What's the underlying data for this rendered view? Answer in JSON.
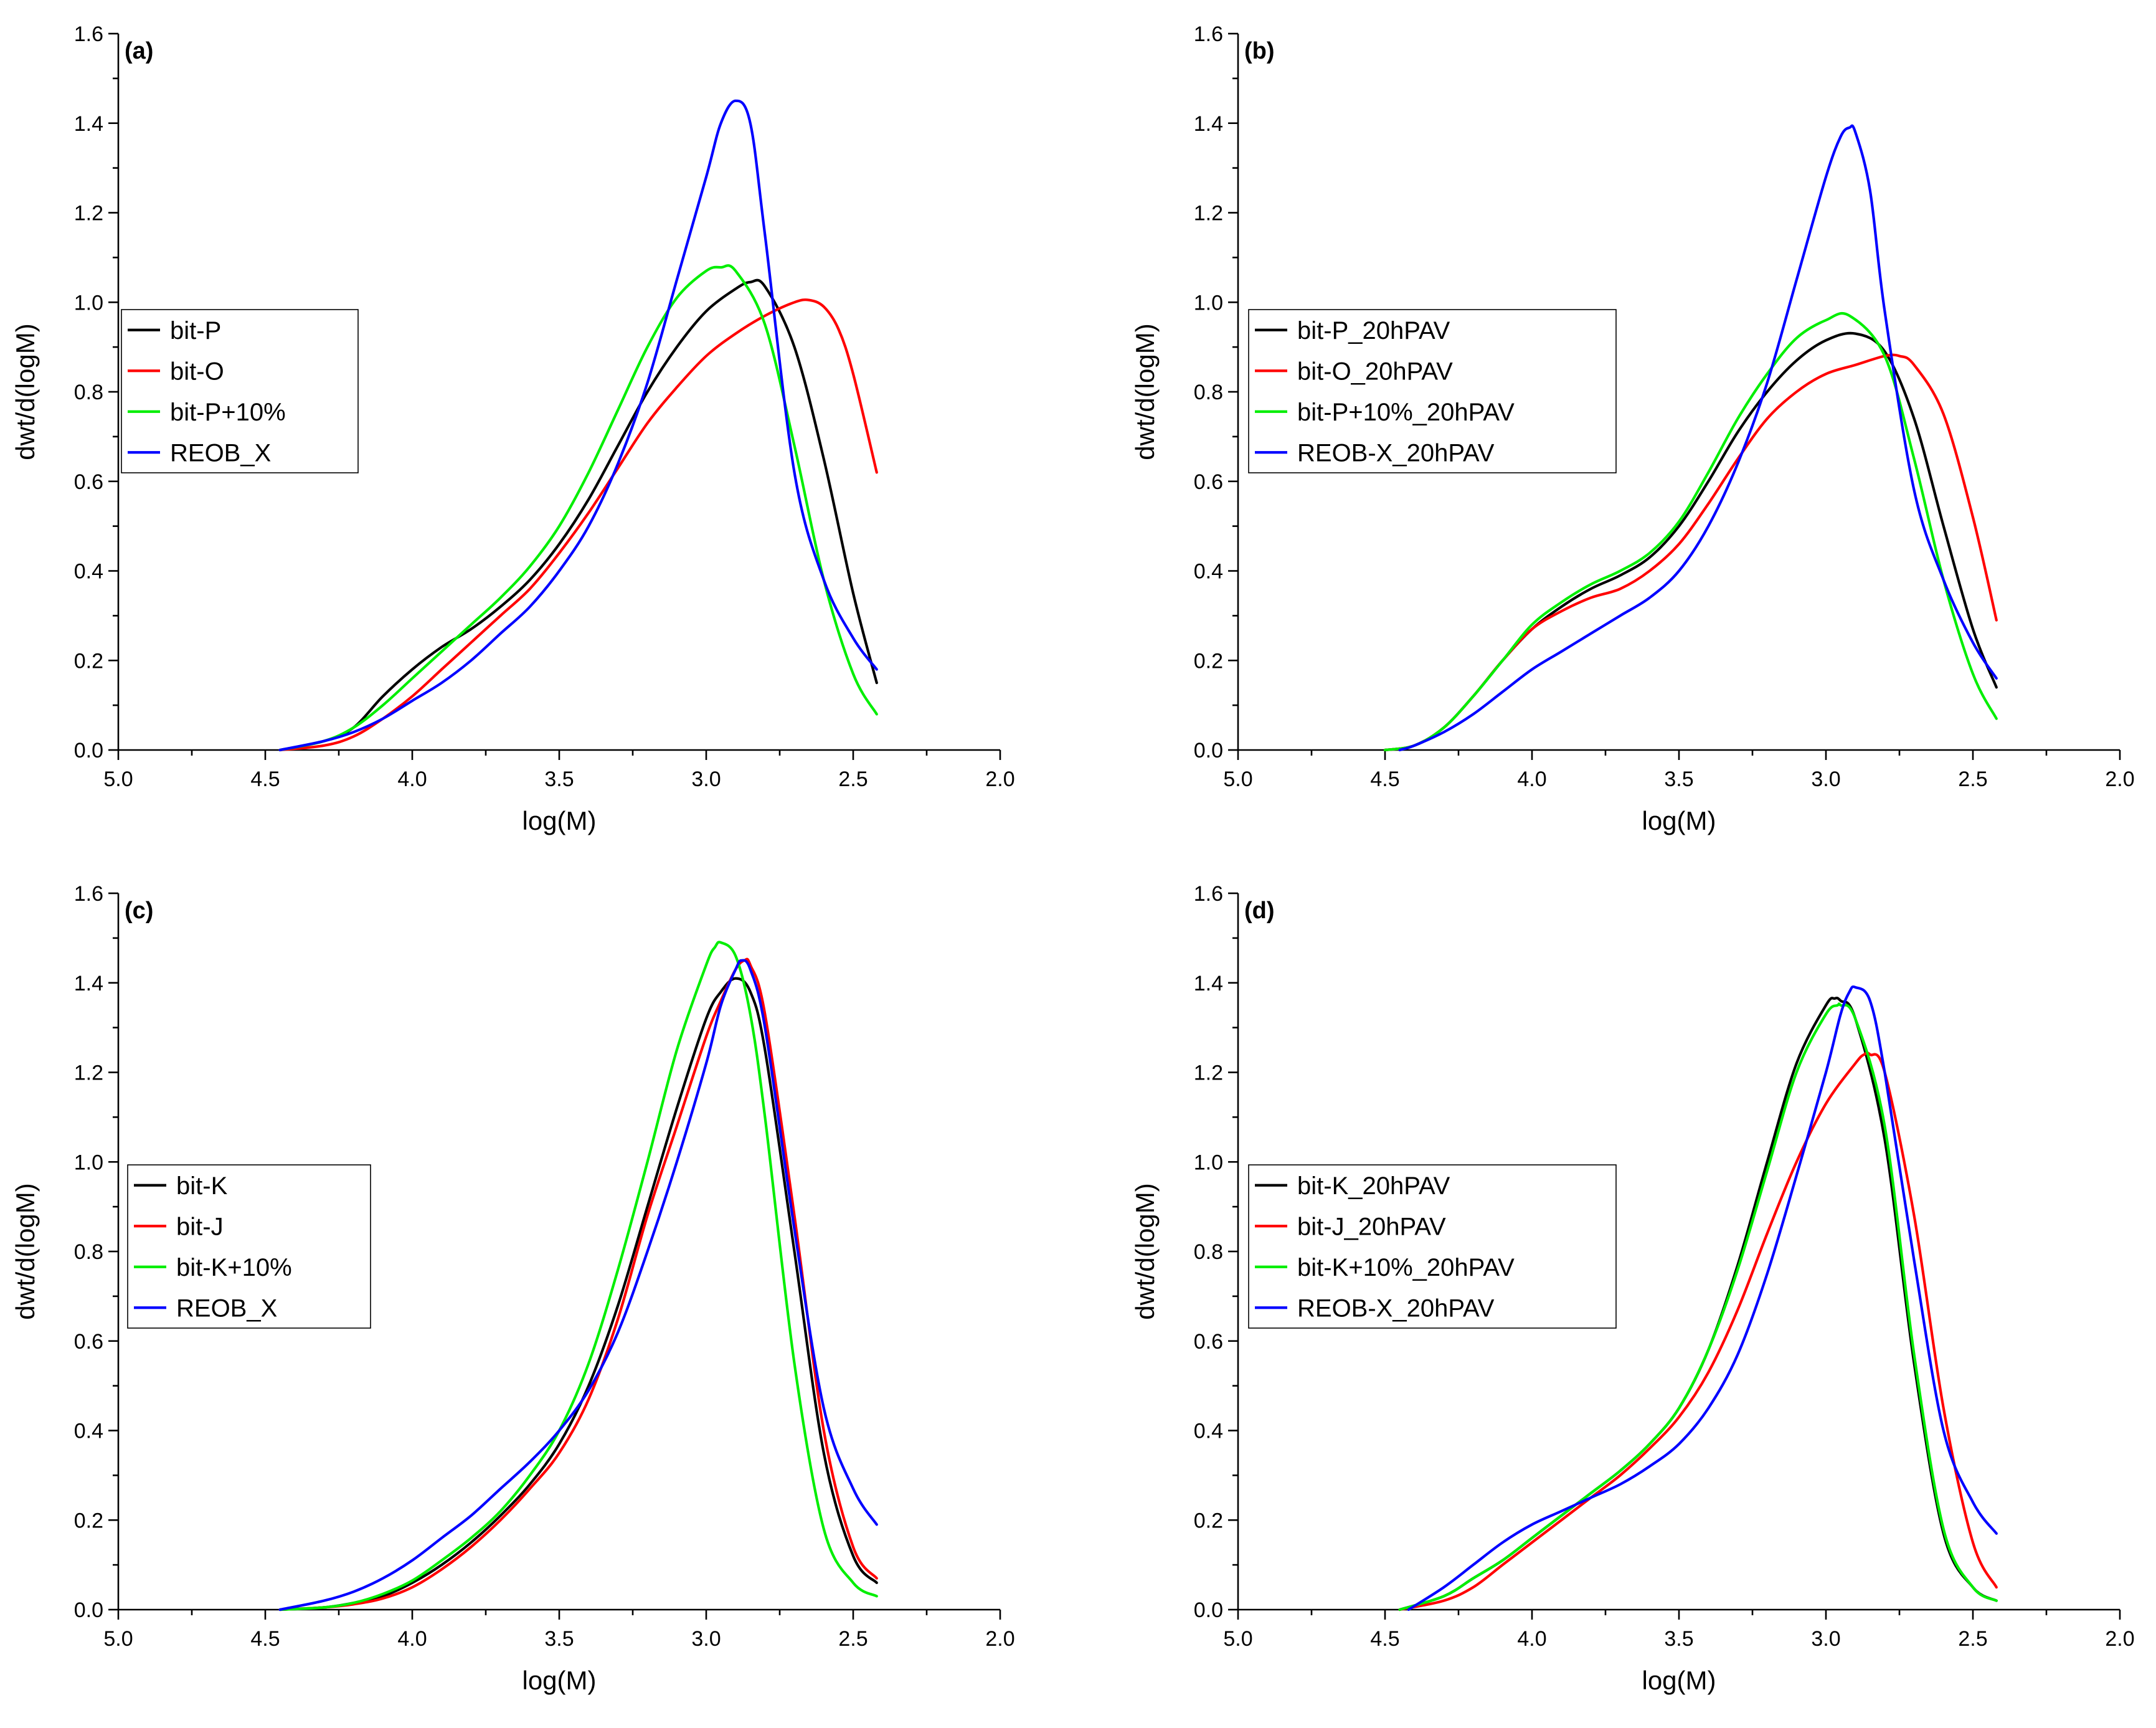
{
  "chart_data": [
    {
      "type": "line",
      "panel_label": "(a)",
      "xlabel": "log(M)",
      "ylabel": "dwt/d(logM)",
      "xlim": [
        5.0,
        2.0
      ],
      "ylim": [
        0.0,
        1.6
      ],
      "xticks": [
        "5.0",
        "4.5",
        "4.0",
        "3.5",
        "3.0",
        "2.5",
        "2.0"
      ],
      "yticks": [
        "0.0",
        "0.2",
        "0.4",
        "0.6",
        "0.8",
        "1.0",
        "1.2",
        "1.4",
        "1.6"
      ],
      "legend_position": "middle-left",
      "series": [
        {
          "name": "bit-P",
          "color": "#000000",
          "x": [
            4.45,
            4.3,
            4.2,
            4.1,
            4.0,
            3.9,
            3.8,
            3.7,
            3.6,
            3.5,
            3.4,
            3.3,
            3.2,
            3.1,
            3.0,
            2.9,
            2.85,
            2.8,
            2.7,
            2.6,
            2.5,
            2.42
          ],
          "y": [
            0.0,
            0.02,
            0.05,
            0.12,
            0.18,
            0.23,
            0.27,
            0.32,
            0.38,
            0.46,
            0.56,
            0.68,
            0.8,
            0.9,
            0.98,
            1.03,
            1.045,
            1.035,
            0.9,
            0.65,
            0.35,
            0.15
          ]
        },
        {
          "name": "bit-O",
          "color": "#ff0000",
          "x": [
            4.45,
            4.3,
            4.2,
            4.1,
            4.0,
            3.9,
            3.8,
            3.7,
            3.6,
            3.5,
            3.4,
            3.3,
            3.2,
            3.1,
            3.0,
            2.9,
            2.8,
            2.7,
            2.65,
            2.6,
            2.55,
            2.5,
            2.42
          ],
          "y": [
            0.0,
            0.01,
            0.03,
            0.07,
            0.12,
            0.18,
            0.24,
            0.3,
            0.36,
            0.44,
            0.53,
            0.63,
            0.73,
            0.81,
            0.88,
            0.93,
            0.97,
            1.0,
            1.005,
            0.99,
            0.94,
            0.84,
            0.62
          ]
        },
        {
          "name": "bit-P+10%",
          "color": "#00ee00",
          "x": [
            4.45,
            4.3,
            4.2,
            4.1,
            4.0,
            3.9,
            3.8,
            3.7,
            3.6,
            3.5,
            3.4,
            3.3,
            3.2,
            3.1,
            3.0,
            2.95,
            2.9,
            2.8,
            2.7,
            2.6,
            2.5,
            2.42
          ],
          "y": [
            0.0,
            0.02,
            0.05,
            0.1,
            0.16,
            0.22,
            0.28,
            0.34,
            0.41,
            0.5,
            0.62,
            0.76,
            0.9,
            1.01,
            1.07,
            1.078,
            1.07,
            0.95,
            0.68,
            0.38,
            0.17,
            0.08
          ]
        },
        {
          "name": "REOB_X",
          "color": "#0000ff",
          "x": [
            4.45,
            4.3,
            4.2,
            4.1,
            4.0,
            3.9,
            3.8,
            3.7,
            3.6,
            3.5,
            3.4,
            3.3,
            3.2,
            3.1,
            3.0,
            2.95,
            2.9,
            2.85,
            2.8,
            2.7,
            2.6,
            2.5,
            2.42
          ],
          "y": [
            0.0,
            0.02,
            0.04,
            0.07,
            0.11,
            0.15,
            0.2,
            0.26,
            0.32,
            0.4,
            0.5,
            0.64,
            0.82,
            1.05,
            1.28,
            1.4,
            1.45,
            1.4,
            1.15,
            0.62,
            0.38,
            0.25,
            0.18
          ]
        }
      ]
    },
    {
      "type": "line",
      "panel_label": "(b)",
      "xlabel": "log(M)",
      "ylabel": "dwt/d(logM)",
      "xlim": [
        5.0,
        2.0
      ],
      "ylim": [
        0.0,
        1.6
      ],
      "xticks": [
        "5.0",
        "4.5",
        "4.0",
        "3.5",
        "3.0",
        "2.5",
        "2.0"
      ],
      "yticks": [
        "0.0",
        "0.2",
        "0.4",
        "0.6",
        "0.8",
        "1.0",
        "1.2",
        "1.4",
        "1.6"
      ],
      "legend_position": "upper-left",
      "series": [
        {
          "name": "bit-P_20hPAV",
          "color": "#000000",
          "x": [
            4.5,
            4.4,
            4.3,
            4.2,
            4.1,
            4.0,
            3.9,
            3.8,
            3.7,
            3.6,
            3.5,
            3.4,
            3.3,
            3.2,
            3.1,
            3.0,
            2.9,
            2.8,
            2.7,
            2.6,
            2.5,
            2.42
          ],
          "y": [
            0.0,
            0.01,
            0.05,
            0.12,
            0.2,
            0.27,
            0.32,
            0.36,
            0.39,
            0.43,
            0.5,
            0.6,
            0.71,
            0.8,
            0.87,
            0.915,
            0.93,
            0.89,
            0.74,
            0.5,
            0.27,
            0.14
          ]
        },
        {
          "name": "bit-O_20hPAV",
          "color": "#ff0000",
          "x": [
            4.5,
            4.4,
            4.3,
            4.2,
            4.1,
            4.0,
            3.9,
            3.8,
            3.7,
            3.6,
            3.5,
            3.4,
            3.3,
            3.2,
            3.1,
            3.0,
            2.9,
            2.8,
            2.75,
            2.7,
            2.6,
            2.5,
            2.42
          ],
          "y": [
            0.0,
            0.01,
            0.05,
            0.12,
            0.2,
            0.27,
            0.31,
            0.34,
            0.36,
            0.4,
            0.46,
            0.55,
            0.65,
            0.74,
            0.8,
            0.84,
            0.86,
            0.88,
            0.88,
            0.86,
            0.75,
            0.52,
            0.29
          ]
        },
        {
          "name": "bit-P+10%_20hPAV",
          "color": "#00ee00",
          "x": [
            4.5,
            4.4,
            4.3,
            4.2,
            4.1,
            4.0,
            3.9,
            3.8,
            3.7,
            3.6,
            3.5,
            3.4,
            3.3,
            3.2,
            3.1,
            3.0,
            2.92,
            2.8,
            2.7,
            2.6,
            2.5,
            2.42
          ],
          "y": [
            0.0,
            0.01,
            0.05,
            0.12,
            0.2,
            0.28,
            0.33,
            0.37,
            0.4,
            0.44,
            0.51,
            0.62,
            0.74,
            0.84,
            0.92,
            0.96,
            0.97,
            0.88,
            0.65,
            0.38,
            0.17,
            0.07
          ]
        },
        {
          "name": "REOB-X_20hPAV",
          "color": "#0000ff",
          "x": [
            4.45,
            4.4,
            4.3,
            4.2,
            4.1,
            4.0,
            3.9,
            3.8,
            3.7,
            3.6,
            3.5,
            3.4,
            3.3,
            3.2,
            3.1,
            3.0,
            2.95,
            2.92,
            2.9,
            2.85,
            2.8,
            2.7,
            2.6,
            2.5,
            2.42
          ],
          "y": [
            0.0,
            0.01,
            0.04,
            0.08,
            0.13,
            0.18,
            0.22,
            0.26,
            0.3,
            0.34,
            0.4,
            0.5,
            0.64,
            0.82,
            1.05,
            1.28,
            1.37,
            1.39,
            1.38,
            1.25,
            0.98,
            0.58,
            0.38,
            0.24,
            0.16
          ]
        }
      ]
    },
    {
      "type": "line",
      "panel_label": "(c)",
      "xlabel": "log(M)",
      "ylabel": "dwt/d(logM)",
      "xlim": [
        5.0,
        2.0
      ],
      "ylim": [
        0.0,
        1.6
      ],
      "xticks": [
        "5.0",
        "4.5",
        "4.0",
        "3.5",
        "3.0",
        "2.5",
        "2.0"
      ],
      "yticks": [
        "0.0",
        "0.2",
        "0.4",
        "0.6",
        "0.8",
        "1.0",
        "1.2",
        "1.4",
        "1.6"
      ],
      "legend_position": "middle-left",
      "series": [
        {
          "name": "bit-K",
          "color": "#000000",
          "x": [
            4.45,
            4.3,
            4.2,
            4.1,
            4.0,
            3.9,
            3.8,
            3.7,
            3.6,
            3.5,
            3.4,
            3.3,
            3.2,
            3.1,
            3.0,
            2.95,
            2.9,
            2.85,
            2.8,
            2.7,
            2.6,
            2.5,
            2.42
          ],
          "y": [
            0.0,
            0.005,
            0.015,
            0.03,
            0.06,
            0.1,
            0.15,
            0.21,
            0.28,
            0.37,
            0.5,
            0.68,
            0.9,
            1.12,
            1.32,
            1.38,
            1.41,
            1.38,
            1.25,
            0.8,
            0.35,
            0.12,
            0.06
          ]
        },
        {
          "name": "bit-J",
          "color": "#ff0000",
          "x": [
            4.45,
            4.3,
            4.2,
            4.1,
            4.0,
            3.9,
            3.8,
            3.7,
            3.6,
            3.5,
            3.4,
            3.3,
            3.2,
            3.1,
            3.0,
            2.95,
            2.9,
            2.87,
            2.85,
            2.8,
            2.7,
            2.6,
            2.5,
            2.42
          ],
          "y": [
            0.0,
            0.005,
            0.012,
            0.025,
            0.05,
            0.09,
            0.14,
            0.2,
            0.27,
            0.35,
            0.47,
            0.65,
            0.88,
            1.08,
            1.28,
            1.36,
            1.43,
            1.45,
            1.44,
            1.33,
            0.88,
            0.4,
            0.14,
            0.07
          ]
        },
        {
          "name": "bit-K+10%",
          "color": "#00ee00",
          "x": [
            4.45,
            4.3,
            4.2,
            4.1,
            4.0,
            3.9,
            3.8,
            3.7,
            3.6,
            3.5,
            3.4,
            3.3,
            3.2,
            3.1,
            3.0,
            2.97,
            2.95,
            2.9,
            2.85,
            2.8,
            2.7,
            2.6,
            2.5,
            2.42
          ],
          "y": [
            0.0,
            0.005,
            0.015,
            0.035,
            0.065,
            0.11,
            0.16,
            0.22,
            0.3,
            0.4,
            0.55,
            0.76,
            1.0,
            1.25,
            1.44,
            1.48,
            1.49,
            1.46,
            1.33,
            1.1,
            0.55,
            0.18,
            0.06,
            0.03
          ]
        },
        {
          "name": "REOB_X",
          "color": "#0000ff",
          "x": [
            4.45,
            4.3,
            4.2,
            4.1,
            4.0,
            3.9,
            3.8,
            3.7,
            3.6,
            3.5,
            3.4,
            3.3,
            3.2,
            3.1,
            3.0,
            2.95,
            2.9,
            2.88,
            2.85,
            2.8,
            2.7,
            2.6,
            2.5,
            2.42
          ],
          "y": [
            0.0,
            0.02,
            0.04,
            0.07,
            0.11,
            0.16,
            0.21,
            0.27,
            0.33,
            0.4,
            0.49,
            0.62,
            0.8,
            1.0,
            1.22,
            1.35,
            1.43,
            1.45,
            1.43,
            1.3,
            0.85,
            0.45,
            0.27,
            0.19
          ]
        }
      ]
    },
    {
      "type": "line",
      "panel_label": "(d)",
      "xlabel": "log(M)",
      "ylabel": "dwt/d(logM)",
      "xlim": [
        5.0,
        2.0
      ],
      "ylim": [
        0.0,
        1.6
      ],
      "xticks": [
        "5.0",
        "4.5",
        "4.0",
        "3.5",
        "3.0",
        "2.5",
        "2.0"
      ],
      "yticks": [
        "0.0",
        "0.2",
        "0.4",
        "0.6",
        "0.8",
        "1.0",
        "1.2",
        "1.4",
        "1.6"
      ],
      "legend_position": "middle-left",
      "series": [
        {
          "name": "bit-K_20hPAV",
          "color": "#000000",
          "x": [
            4.45,
            4.3,
            4.2,
            4.1,
            4.0,
            3.9,
            3.8,
            3.7,
            3.6,
            3.5,
            3.4,
            3.3,
            3.2,
            3.1,
            3.0,
            2.97,
            2.95,
            2.9,
            2.8,
            2.7,
            2.6,
            2.5,
            2.42
          ],
          "y": [
            0.0,
            0.03,
            0.07,
            0.11,
            0.16,
            0.21,
            0.26,
            0.31,
            0.37,
            0.45,
            0.58,
            0.77,
            1.0,
            1.22,
            1.35,
            1.365,
            1.36,
            1.32,
            1.05,
            0.55,
            0.17,
            0.05,
            0.02
          ]
        },
        {
          "name": "bit-J_20hPAV",
          "color": "#ff0000",
          "x": [
            4.45,
            4.3,
            4.2,
            4.1,
            4.0,
            3.9,
            3.8,
            3.7,
            3.6,
            3.5,
            3.4,
            3.3,
            3.2,
            3.1,
            3.0,
            2.9,
            2.87,
            2.85,
            2.8,
            2.7,
            2.6,
            2.5,
            2.42
          ],
          "y": [
            0.0,
            0.02,
            0.05,
            0.1,
            0.15,
            0.2,
            0.25,
            0.3,
            0.36,
            0.43,
            0.53,
            0.67,
            0.84,
            1.0,
            1.13,
            1.22,
            1.24,
            1.24,
            1.2,
            0.88,
            0.45,
            0.15,
            0.05
          ]
        },
        {
          "name": "bit-K+10%_20hPAV",
          "color": "#00ee00",
          "x": [
            4.45,
            4.3,
            4.2,
            4.1,
            4.0,
            3.9,
            3.8,
            3.7,
            3.6,
            3.5,
            3.4,
            3.3,
            3.2,
            3.1,
            3.0,
            2.96,
            2.95,
            2.9,
            2.8,
            2.7,
            2.6,
            2.5,
            2.42
          ],
          "y": [
            0.0,
            0.03,
            0.07,
            0.11,
            0.16,
            0.21,
            0.26,
            0.31,
            0.37,
            0.45,
            0.58,
            0.76,
            0.98,
            1.2,
            1.33,
            1.35,
            1.35,
            1.32,
            1.08,
            0.57,
            0.18,
            0.05,
            0.02
          ]
        },
        {
          "name": "REOB-X_20hPAV",
          "color": "#0000ff",
          "x": [
            4.42,
            4.3,
            4.2,
            4.1,
            4.0,
            3.9,
            3.8,
            3.7,
            3.6,
            3.5,
            3.4,
            3.3,
            3.2,
            3.1,
            3.0,
            2.95,
            2.92,
            2.9,
            2.85,
            2.8,
            2.7,
            2.6,
            2.5,
            2.42
          ],
          "y": [
            0.0,
            0.05,
            0.1,
            0.15,
            0.19,
            0.22,
            0.25,
            0.28,
            0.32,
            0.37,
            0.45,
            0.57,
            0.75,
            0.97,
            1.2,
            1.33,
            1.38,
            1.39,
            1.36,
            1.2,
            0.78,
            0.4,
            0.24,
            0.17
          ]
        }
      ]
    }
  ]
}
